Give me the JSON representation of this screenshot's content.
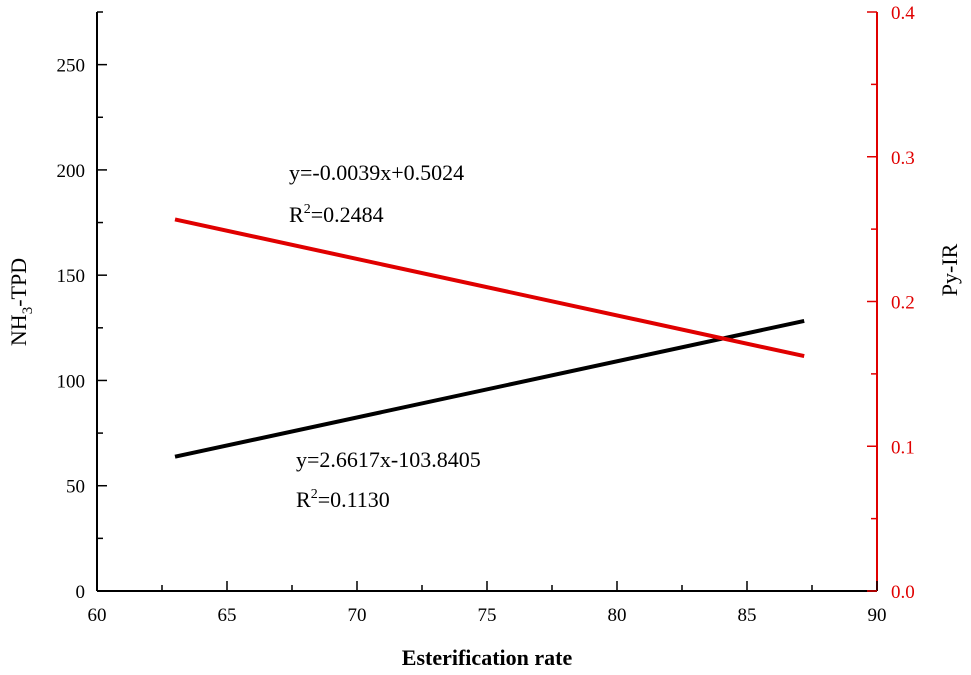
{
  "chart_data": {
    "type": "line",
    "xlabel": "Esterification rate",
    "ylabel_left": "NH3-TPD",
    "ylabel_left_main": "NH",
    "ylabel_left_sub": "3",
    "ylabel_left_tail": "-TPD",
    "ylabel_right": "Py-IR",
    "xlim": [
      60,
      90
    ],
    "ylim_left": [
      0,
      275
    ],
    "ylim_right": [
      0.0,
      0.4
    ],
    "x_ticks": [
      "60",
      "65",
      "70",
      "75",
      "80",
      "85",
      "90"
    ],
    "y_left_ticks": [
      "0",
      "50",
      "100",
      "150",
      "200",
      "250"
    ],
    "y_right_ticks": [
      "0.0",
      "0.1",
      "0.2",
      "0.3",
      "0.4"
    ],
    "series": [
      {
        "axis": "left",
        "color": "#000000",
        "x": [
          63,
          87.2
        ],
        "y": [
          63.8,
          128.3
        ]
      },
      {
        "axis": "right",
        "color": "#e00000",
        "x": [
          63,
          87.2
        ],
        "y": [
          0.2567,
          0.1623
        ]
      }
    ],
    "annotations": [
      {
        "id": "red-equation",
        "text": "y=-0.0039x+0.5024",
        "r2_prefix": "R",
        "r2_sup": "2",
        "r2_value": "=0.2484"
      },
      {
        "id": "black-equation",
        "text": "y=2.6617x-103.8405",
        "r2_prefix": "R",
        "r2_sup": "2",
        "r2_value": "=0.1130"
      }
    ],
    "grid": false,
    "legend": "none"
  }
}
